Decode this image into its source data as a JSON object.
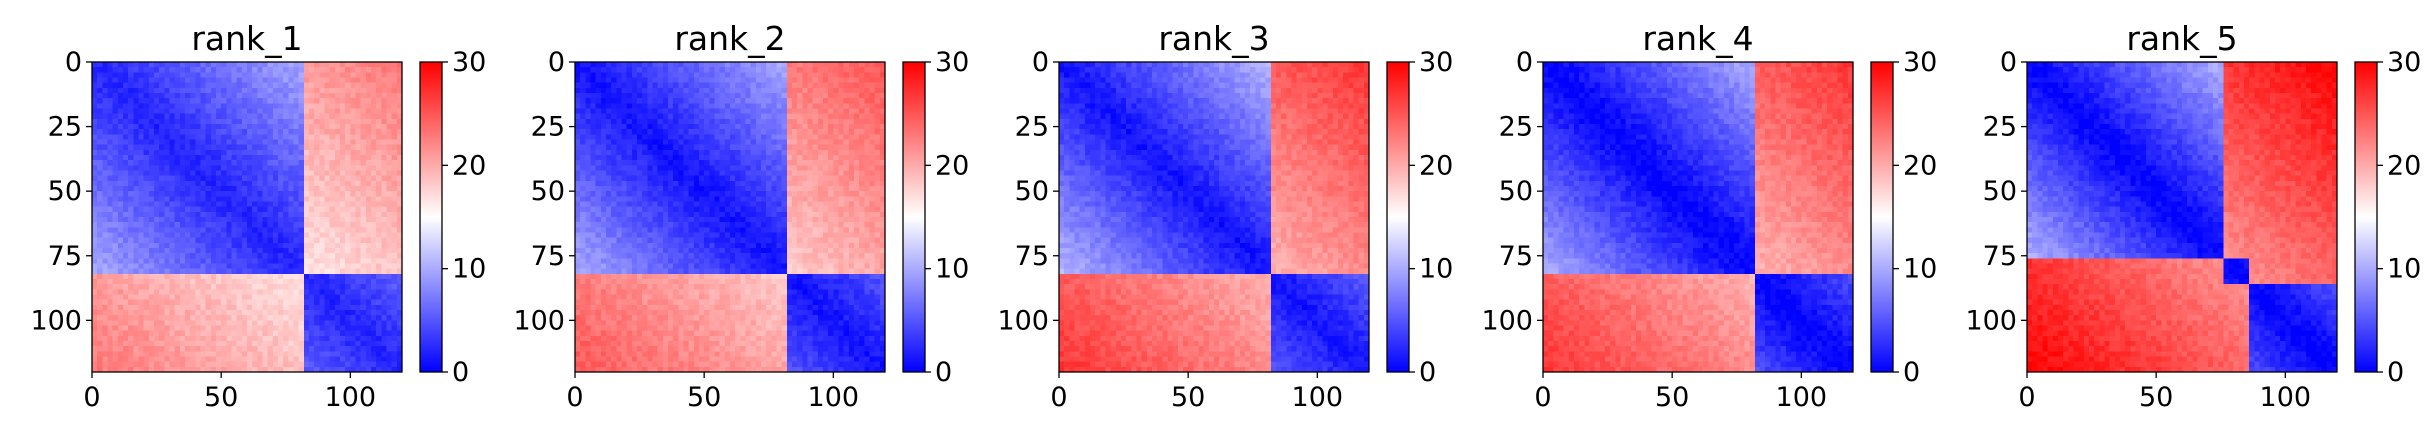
{
  "chart_data": {
    "type": "heatmap",
    "colormap": [
      "#0000ff",
      "#ffffff",
      "#ff0000"
    ],
    "value_range": [
      0,
      30
    ],
    "colorbar_ticks": [
      0,
      10,
      20,
      30
    ],
    "axis_range": [
      0,
      120
    ],
    "x_ticks": [
      0,
      50,
      100
    ],
    "y_ticks": [
      0,
      25,
      50,
      75,
      100
    ],
    "y_inverted": true,
    "panels": [
      {
        "title": "rank_1",
        "breaks": [
          82
        ],
        "min_val": 2,
        "max_val": 23
      },
      {
        "title": "rank_2",
        "breaks": [
          82
        ],
        "min_val": 1,
        "max_val": 25
      },
      {
        "title": "rank_3",
        "breaks": [
          82
        ],
        "min_val": 1,
        "max_val": 27
      },
      {
        "title": "rank_4",
        "breaks": [
          82
        ],
        "min_val": 0,
        "max_val": 27
      },
      {
        "title": "rank_5",
        "breaks": [
          75,
          86
        ],
        "min_val": 0,
        "max_val": 30
      }
    ]
  }
}
